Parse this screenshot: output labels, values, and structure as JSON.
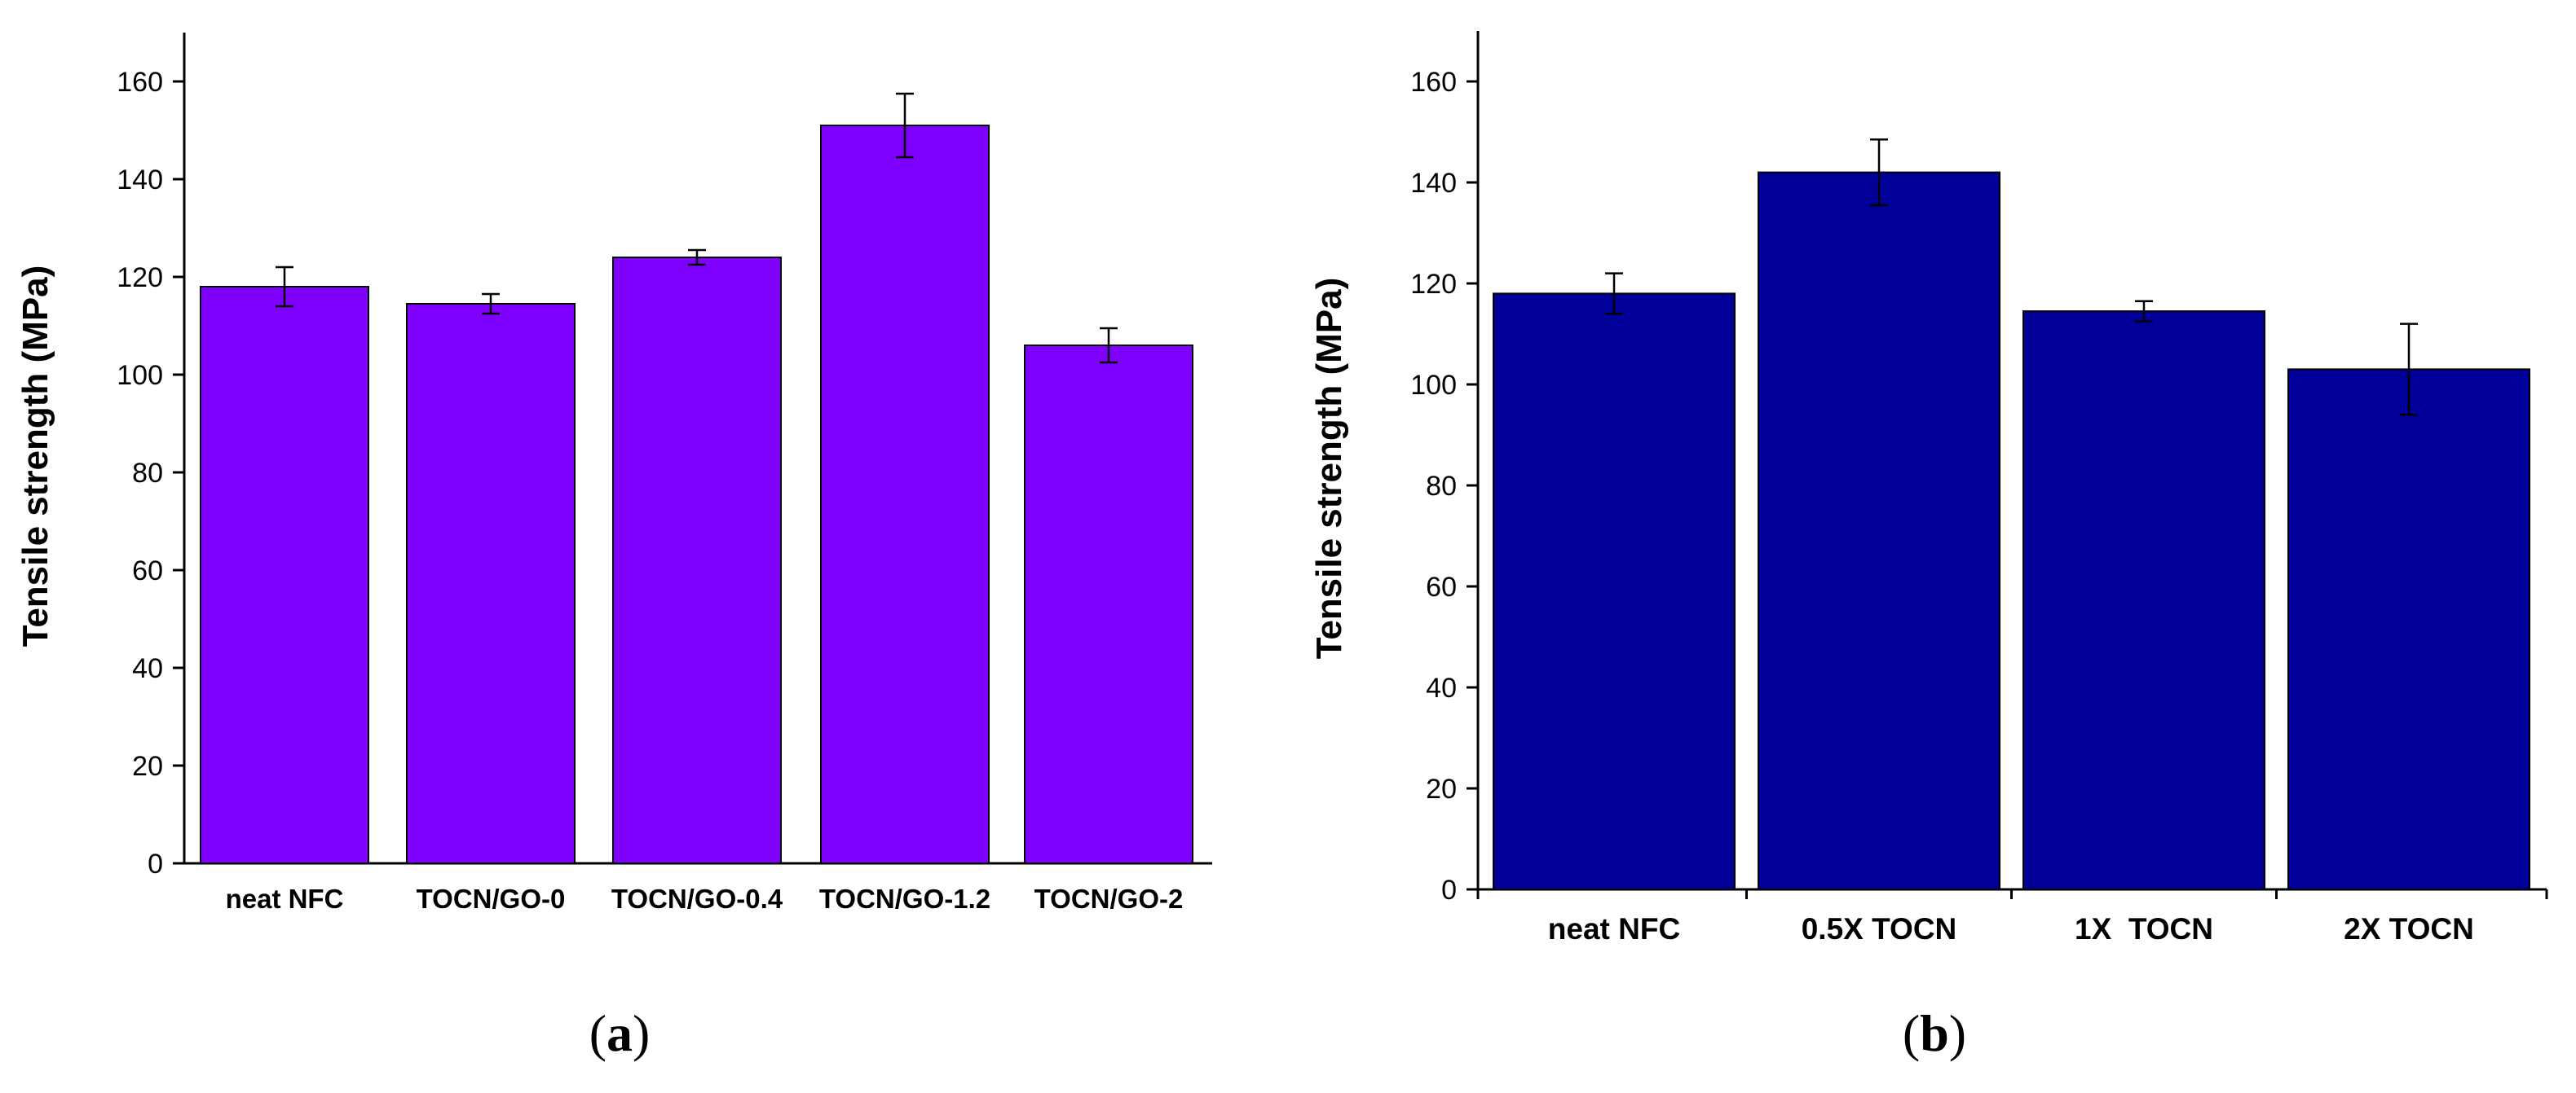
{
  "chart_data": [
    {
      "type": "bar",
      "panel": "a",
      "title": "",
      "xlabel": "",
      "ylabel": "Tensile strength (MPa)",
      "ylim": [
        0,
        170
      ],
      "yticks": [
        0,
        20,
        40,
        60,
        80,
        100,
        120,
        140,
        160
      ],
      "categories": [
        "neat NFC",
        "TOCN/GO-0",
        "TOCN/GO-0.4",
        "TOCN/GO-1.2",
        "TOCN/GO-2"
      ],
      "values": [
        118,
        114.5,
        124,
        151,
        106
      ],
      "errors": [
        4,
        2,
        1.5,
        6.5,
        3.5
      ],
      "bar_color": "#7f00ff",
      "grid": false
    },
    {
      "type": "bar",
      "panel": "b",
      "title": "",
      "xlabel": "",
      "ylabel": "Tensile strength (MPa)",
      "ylim": [
        0,
        170
      ],
      "yticks": [
        0,
        20,
        40,
        60,
        80,
        100,
        120,
        140,
        160
      ],
      "categories": [
        "neat NFC",
        "0.5X TOCN",
        "1X  TOCN",
        "2X TOCN"
      ],
      "values": [
        118,
        142,
        114.5,
        103
      ],
      "errors": [
        4,
        6.5,
        2,
        9
      ],
      "bar_color": "#000099",
      "grid": false
    }
  ],
  "panel_labels": {
    "a": {
      "open": "(",
      "letter": "a",
      "close": ")"
    },
    "b": {
      "open": "(",
      "letter": "b",
      "close": ")"
    }
  }
}
